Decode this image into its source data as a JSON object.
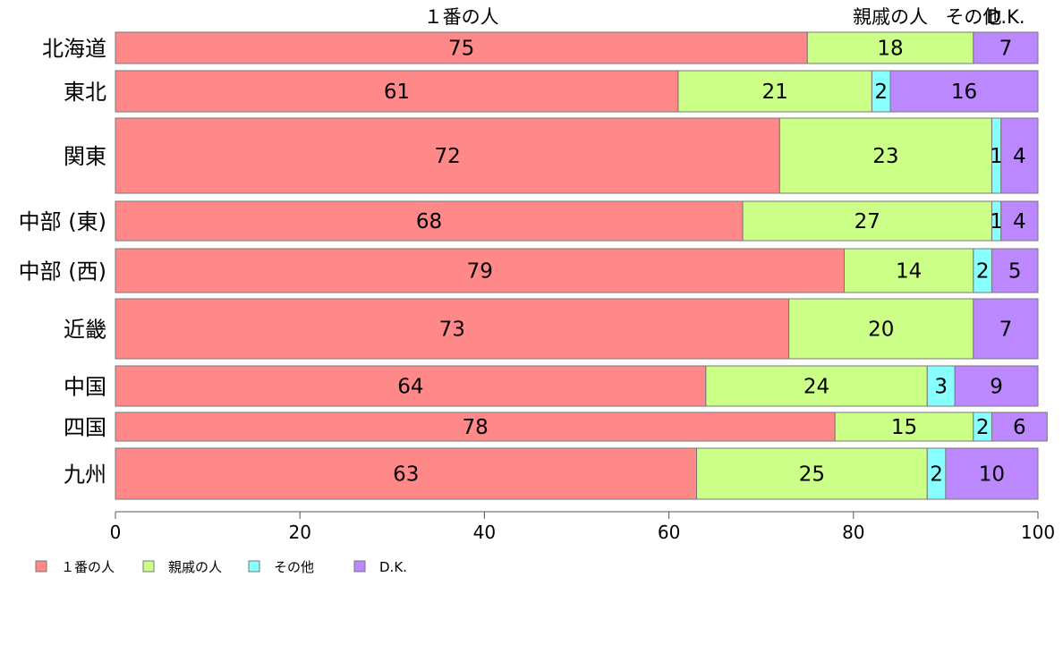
{
  "chart_data": {
    "type": "bar",
    "orientation": "horizontal",
    "stacked": true,
    "variable_width": true,
    "categories": [
      "北海道",
      "東北",
      "関東",
      "中部 (東)",
      "中部 (西)",
      "近畿",
      "中国",
      "四国",
      "九州"
    ],
    "series": [
      {
        "name": "１番の人",
        "color": "#FF8888",
        "values": [
          75,
          61,
          72,
          68,
          79,
          73,
          64,
          78,
          63
        ]
      },
      {
        "name": "親戚の人",
        "color": "#CCFF88",
        "values": [
          18,
          21,
          23,
          27,
          14,
          20,
          24,
          15,
          25
        ]
      },
      {
        "name": "その他",
        "color": "#88FFFF",
        "values": [
          0,
          2,
          1,
          1,
          2,
          0,
          3,
          2,
          2
        ]
      },
      {
        "name": "D.K.",
        "color": "#BB88FF",
        "values": [
          7,
          16,
          4,
          4,
          5,
          7,
          9,
          6,
          10
        ]
      }
    ],
    "top_labels": [
      "１番の人",
      "親戚の人",
      "その他",
      "D.K."
    ],
    "xlim": [
      0,
      100
    ],
    "xticks": [
      0,
      20,
      40,
      60,
      80,
      100
    ],
    "legend_position": "bottom-left",
    "grid": false
  }
}
